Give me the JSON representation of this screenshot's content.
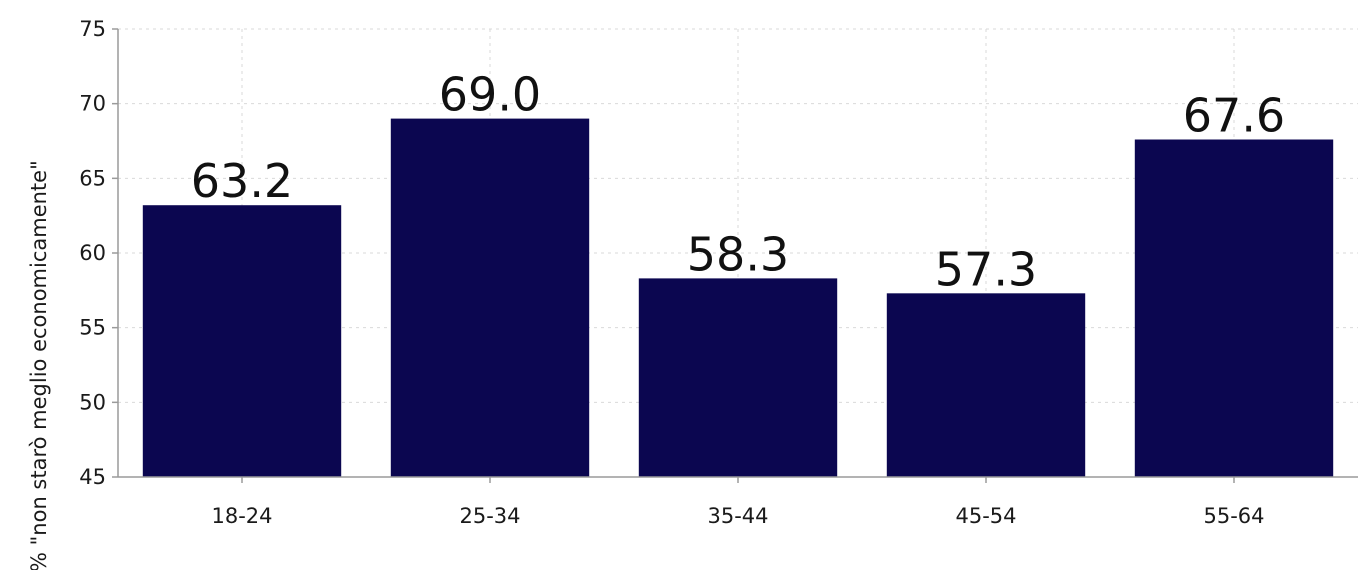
{
  "chart_data": {
    "type": "bar",
    "title": "",
    "xlabel": "",
    "ylabel": "% \"non starò meglio economicamente\"",
    "categories": [
      "18-24",
      "25-34",
      "35-44",
      "45-54",
      "55-64"
    ],
    "values": [
      63.2,
      69.0,
      58.3,
      57.3,
      67.6
    ],
    "value_labels": [
      "63.2",
      "69.0",
      "58.3",
      "57.3",
      "67.6"
    ],
    "ylim": [
      45,
      75
    ],
    "yticks": [
      45,
      50,
      55,
      60,
      65,
      70,
      75
    ],
    "grid": true,
    "bar_color": "#0b0650"
  }
}
